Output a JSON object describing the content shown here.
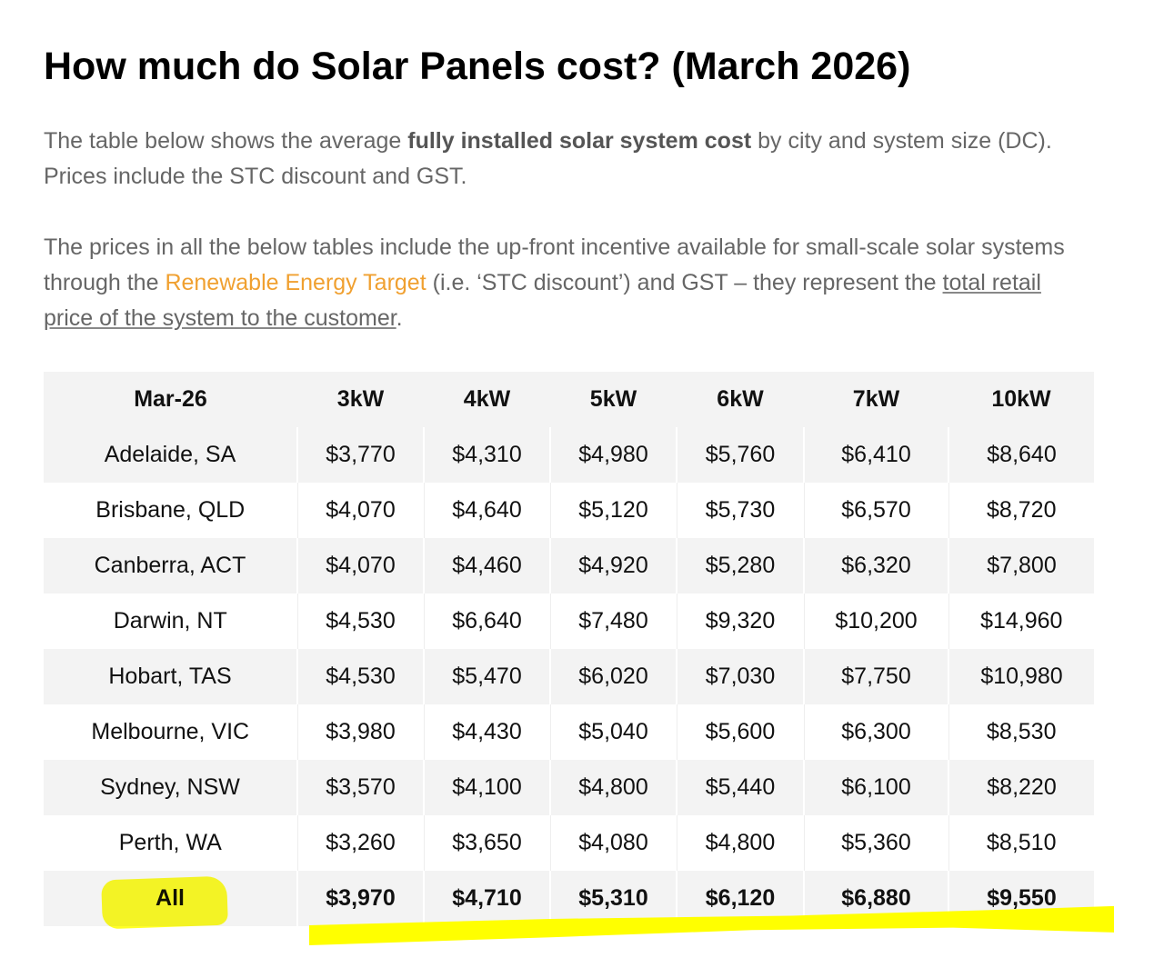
{
  "heading": "How much do Solar Panels cost? (March 2026)",
  "intro": {
    "text_before": "The table below shows the average ",
    "bold": "fully installed solar system cost",
    "text_after": " by city and system size (DC). Prices include the STC discount and GST."
  },
  "incentive": {
    "text_1": "The prices in all the below tables include the up-front incentive available for small-scale solar systems through the ",
    "link_ret": "Renewable Energy Target",
    "text_2": " (i.e. ‘STC discount’) and GST – they represent the ",
    "link_total": "total retail price of the system to the customer",
    "text_3": "."
  },
  "table": {
    "headers": [
      "Mar-26",
      "3kW",
      "4kW",
      "5kW",
      "6kW",
      "7kW",
      "10kW"
    ],
    "rows": [
      [
        "Adelaide, SA",
        "$3,770",
        "$4,310",
        "$4,980",
        "$5,760",
        "$6,410",
        "$8,640"
      ],
      [
        "Brisbane, QLD",
        "$4,070",
        "$4,640",
        "$5,120",
        "$5,730",
        "$6,570",
        "$8,720"
      ],
      [
        "Canberra, ACT",
        "$4,070",
        "$4,460",
        "$4,920",
        "$5,280",
        "$6,320",
        "$7,800"
      ],
      [
        "Darwin, NT",
        "$4,530",
        "$6,640",
        "$7,480",
        "$9,320",
        "$10,200",
        "$14,960"
      ],
      [
        "Hobart, TAS",
        "$4,530",
        "$5,470",
        "$6,020",
        "$7,030",
        "$7,750",
        "$10,980"
      ],
      [
        "Melbourne, VIC",
        "$3,980",
        "$4,430",
        "$5,040",
        "$5,600",
        "$6,300",
        "$8,530"
      ],
      [
        "Sydney, NSW",
        "$3,570",
        "$4,100",
        "$4,800",
        "$5,440",
        "$6,100",
        "$8,220"
      ],
      [
        "Perth, WA",
        "$3,260",
        "$3,650",
        "$4,080",
        "$4,800",
        "$5,360",
        "$8,510"
      ]
    ],
    "total": [
      "All",
      "$3,970",
      "$4,710",
      "$5,310",
      "$6,120",
      "$6,880",
      "$9,550"
    ]
  },
  "highlight_color": "#ffff00",
  "link_color": "#f0a030"
}
